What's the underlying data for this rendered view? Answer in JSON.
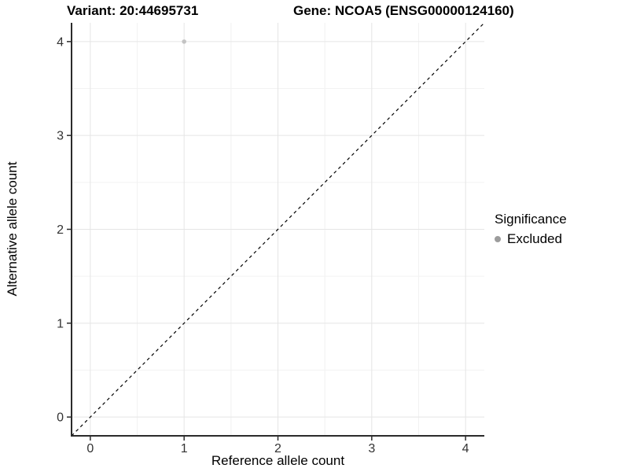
{
  "chart_data": {
    "type": "scatter",
    "title_left": "Variant: 20:44695731",
    "title_right": "Gene: NCOA5 (ENSG00000124160)",
    "xlabel": "Reference allele count",
    "ylabel": "Alternative allele count",
    "xlim": [
      -0.2,
      4.2
    ],
    "ylim": [
      -0.2,
      4.2
    ],
    "xticks": [
      0,
      1,
      2,
      3,
      4
    ],
    "yticks": [
      0,
      1,
      2,
      3,
      4
    ],
    "xticks_minor": [
      0.5,
      1.5,
      2.5,
      3.5
    ],
    "yticks_minor": [
      0.5,
      1.5,
      2.5,
      3.5
    ],
    "grid": "major+minor",
    "legend": {
      "title": "Significance",
      "position": "right",
      "entries": [
        {
          "label": "Excluded",
          "color": "#9c9c9c"
        }
      ]
    },
    "series": [
      {
        "name": "Excluded",
        "color": "#c3c3c3",
        "points": [
          {
            "x": 1,
            "y": 4
          }
        ]
      }
    ],
    "reference_line": {
      "type": "identity",
      "style": "dashed",
      "color": "#000000",
      "from": [
        -0.2,
        -0.2
      ],
      "to": [
        4.2,
        4.2
      ]
    },
    "style": {
      "background": "#ffffff",
      "grid_major": "#e5e5e5",
      "grid_minor": "#f2f2f2",
      "axis_line": "#2b2b2b",
      "tick_label": "#333333",
      "text": "#000000"
    }
  }
}
